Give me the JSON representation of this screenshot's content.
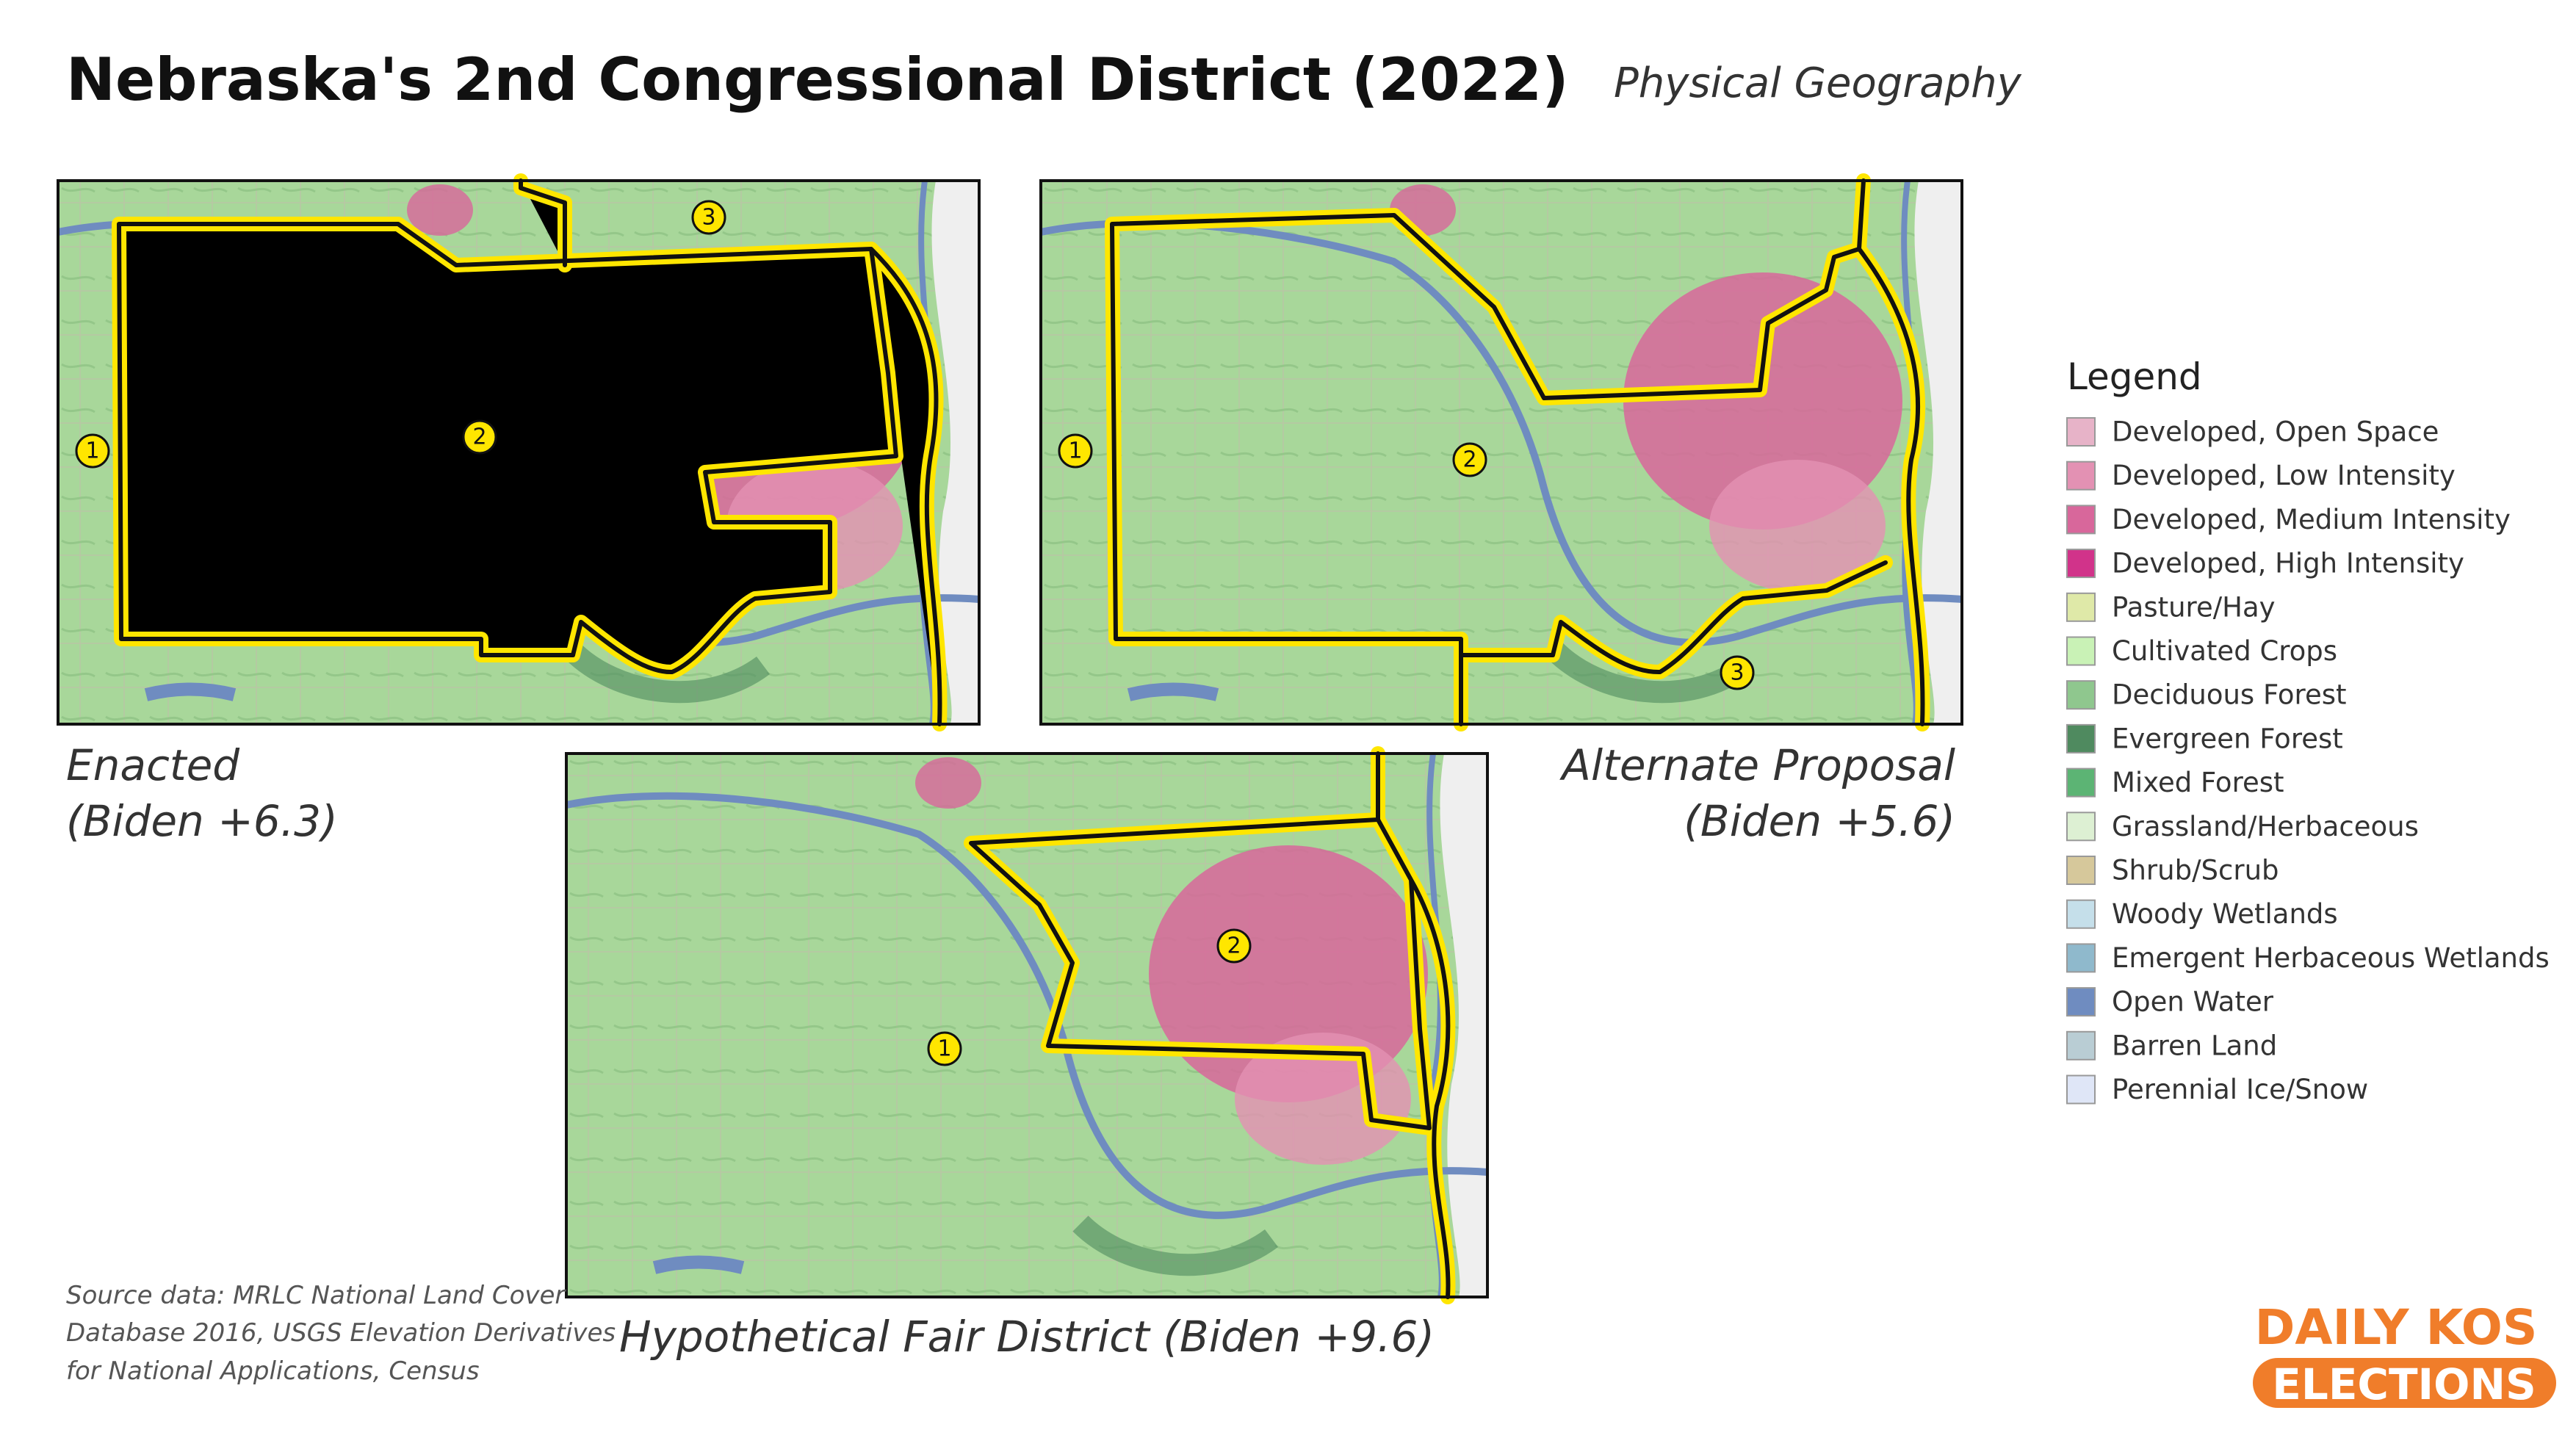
{
  "header": {
    "title": "Nebraska's 2nd Congressional District (2022)",
    "subtitle": "Physical Geography"
  },
  "maps": [
    {
      "caption": [
        "Enacted",
        "(Biden +6.3)"
      ],
      "district_labels": [
        "1",
        "2",
        "3"
      ]
    },
    {
      "caption": [
        "Alternate Proposal",
        "(Biden +5.6)"
      ],
      "district_labels": [
        "1",
        "2",
        "3"
      ]
    },
    {
      "caption": [
        "Hypothetical Fair District (Biden +9.6)"
      ],
      "district_labels": [
        "2",
        "1"
      ]
    }
  ],
  "legend": {
    "title": "Legend",
    "items": [
      {
        "label": "Developed, Open Space",
        "color": "#e7b3c8"
      },
      {
        "label": "Developed, Low Intensity",
        "color": "#e391b3"
      },
      {
        "label": "Developed, Medium Intensity",
        "color": "#d8679b"
      },
      {
        "label": "Developed, High Intensity",
        "color": "#d1338a"
      },
      {
        "label": "Pasture/Hay",
        "color": "#dfe9a8"
      },
      {
        "label": "Cultivated Crops",
        "color": "#c9f2b6"
      },
      {
        "label": "Deciduous Forest",
        "color": "#8fc78e"
      },
      {
        "label": "Evergreen Forest",
        "color": "#4f8a5f"
      },
      {
        "label": "Mixed Forest",
        "color": "#5cb474"
      },
      {
        "label": "Grassland/Herbaceous",
        "color": "#ddf0d3"
      },
      {
        "label": "Shrub/Scrub",
        "color": "#d6c89b"
      },
      {
        "label": "Woody Wetlands",
        "color": "#c5dfea"
      },
      {
        "label": "Emergent Herbaceous Wetlands",
        "color": "#8fb9cc"
      },
      {
        "label": "Open Water",
        "color": "#6f8cc0"
      },
      {
        "label": "Barren Land",
        "color": "#b9cdd4"
      },
      {
        "label": "Perennial Ice/Snow",
        "color": "#dfe6f7"
      }
    ]
  },
  "source": [
    "Source data: MRLC National Land Cover",
    "Database 2016, USGS Elevation Derivatives",
    "for National Applications, Census"
  ],
  "logo": [
    "DAILY KOS",
    "ELECTIONS"
  ]
}
